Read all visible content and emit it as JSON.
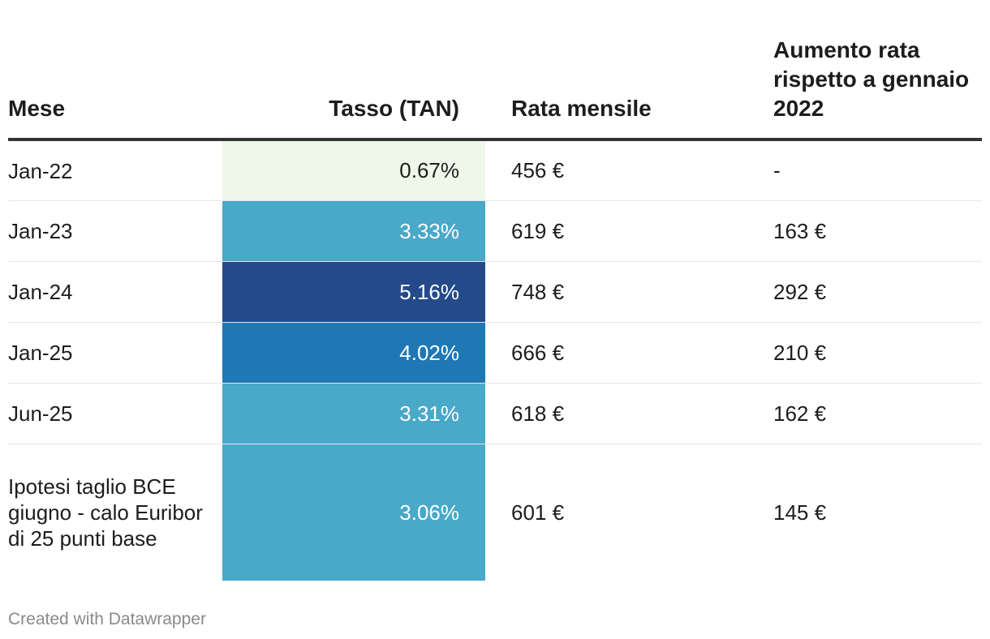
{
  "chart_data": {
    "type": "table",
    "columns": [
      "Mese",
      "Tasso (TAN)",
      "Rata mensile",
      "Aumento rata rispetto a gennaio 2022"
    ],
    "rows": [
      {
        "mese": "Jan-22",
        "tasso": "0.67%",
        "rata": "456 €",
        "aumento": "-",
        "bg": "#eff7e8",
        "fg": "#1d1d1d"
      },
      {
        "mese": "Jan-23",
        "tasso": "3.33%",
        "rata": "619 €",
        "aumento": "163 €",
        "bg": "#4aa8c9",
        "fg": "#ffffff"
      },
      {
        "mese": "Jan-24",
        "tasso": "5.16%",
        "rata": "748 €",
        "aumento": "292 €",
        "bg": "#244a8a",
        "fg": "#ffffff"
      },
      {
        "mese": "Jan-25",
        "tasso": "4.02%",
        "rata": "666 €",
        "aumento": "210 €",
        "bg": "#1f78b4",
        "fg": "#ffffff"
      },
      {
        "mese": "Jun-25",
        "tasso": "3.31%",
        "rata": "618 €",
        "aumento": "162 €",
        "bg": "#4aa8c9",
        "fg": "#ffffff"
      },
      {
        "mese": "Ipotesi taglio BCE giugno - calo Euribor di 25 punti base",
        "tasso": "3.06%",
        "rata": "601 €",
        "aumento": "145 €",
        "bg": "#4aa8c9",
        "fg": "#ffffff"
      }
    ]
  },
  "footer": "Created with Datawrapper"
}
